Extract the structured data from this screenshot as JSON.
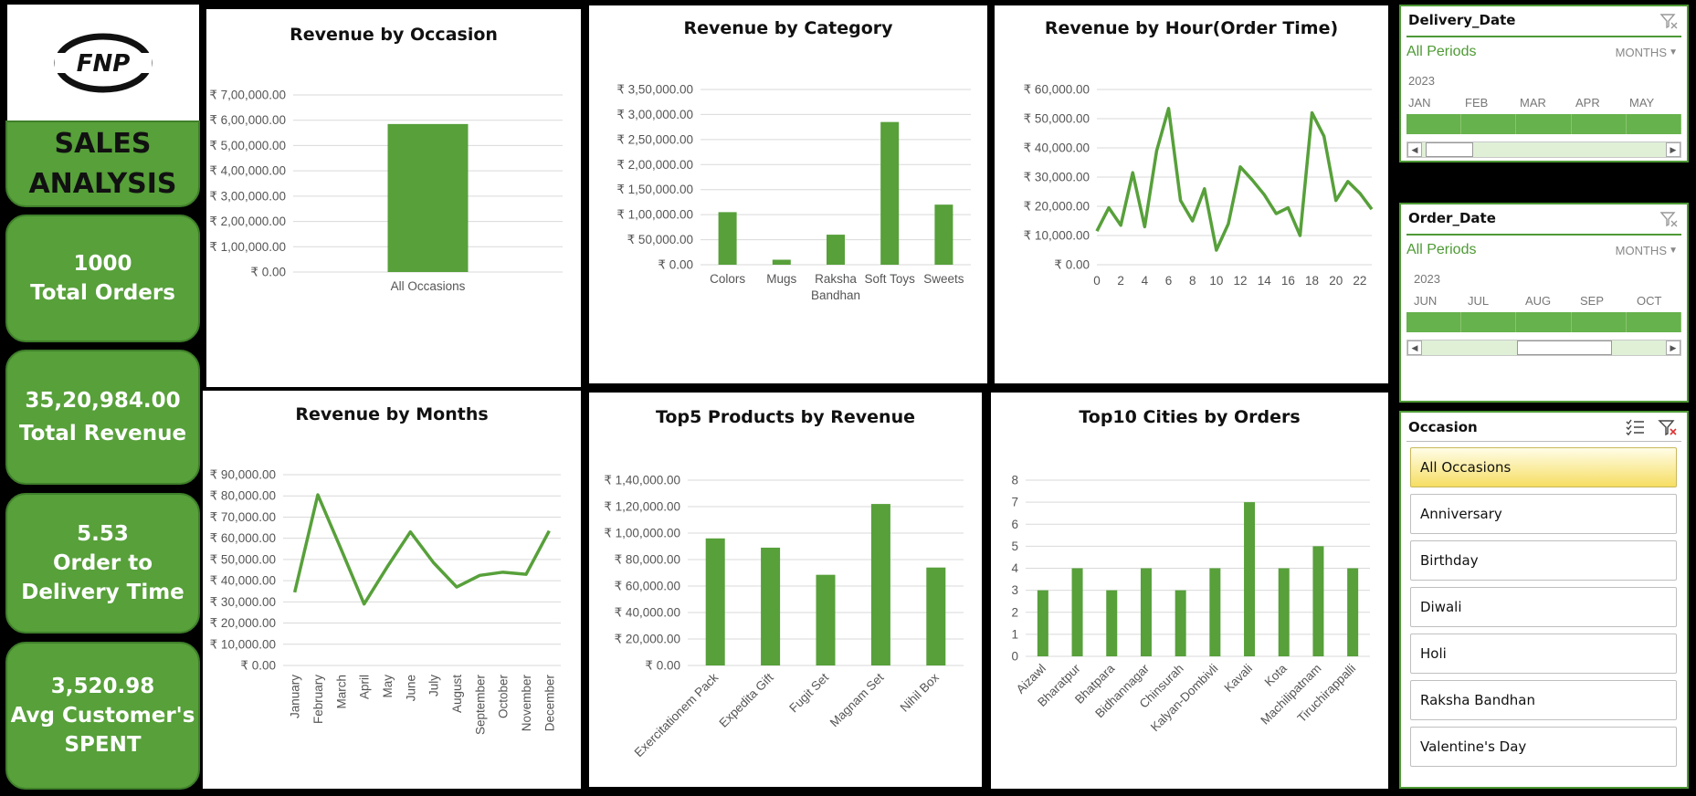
{
  "brand": {
    "logo_text": "FNP"
  },
  "kpis": {
    "title": [
      "SALES",
      "ANALYSIS"
    ],
    "orders": {
      "value": "1000",
      "label": "Total Orders"
    },
    "revenue": {
      "value": "35,20,984.00",
      "label": "Total Revenue"
    },
    "delivery": {
      "value": "5.53",
      "label1": "Order to",
      "label2": "Delivery Time"
    },
    "avg": {
      "value": "3,520.98",
      "label1": "Avg Customer's",
      "label2": "SPENT"
    }
  },
  "colors": {
    "accent": "#57a03a",
    "bar": "#57a03a",
    "line": "#57a03a"
  },
  "chart_data": [
    {
      "id": "occasion",
      "type": "bar",
      "title": "Revenue by Occasion",
      "categories": [
        "All Occasions"
      ],
      "values": [
        585000
      ],
      "ylim": [
        0,
        700000
      ],
      "yticks": [
        "₹ 0.00",
        "₹ 1,00,000.00",
        "₹ 2,00,000.00",
        "₹ 3,00,000.00",
        "₹ 4,00,000.00",
        "₹ 5,00,000.00",
        "₹ 6,00,000.00",
        "₹ 7,00,000.00"
      ]
    },
    {
      "id": "category",
      "type": "bar",
      "title": "Revenue by Category",
      "categories": [
        "Colors",
        "Mugs",
        "Raksha\nBandhan",
        "Soft Toys",
        "Sweets"
      ],
      "values": [
        105000,
        10000,
        60000,
        285000,
        120000
      ],
      "ylim": [
        0,
        350000
      ],
      "yticks": [
        "₹ 0.00",
        "₹ 50,000.00",
        "₹ 1,00,000.00",
        "₹ 1,50,000.00",
        "₹ 2,00,000.00",
        "₹ 2,50,000.00",
        "₹ 3,00,000.00",
        "₹ 3,50,000.00"
      ]
    },
    {
      "id": "hour",
      "type": "line",
      "title": "Revenue by Hour(Order Time)",
      "x": [
        0,
        1,
        2,
        3,
        4,
        5,
        6,
        7,
        8,
        9,
        10,
        11,
        12,
        13,
        14,
        15,
        16,
        17,
        18,
        19,
        20,
        21,
        22,
        23
      ],
      "values": [
        11500,
        19500,
        13500,
        31500,
        13000,
        39000,
        53500,
        22000,
        15000,
        26000,
        5000,
        14000,
        33500,
        29000,
        24000,
        17500,
        19500,
        10000,
        52000,
        44000,
        22000,
        28500,
        24500,
        19000
      ],
      "ylim": [
        0,
        60000
      ],
      "yticks": [
        "₹ 0.00",
        "₹ 10,000.00",
        "₹ 20,000.00",
        "₹ 30,000.00",
        "₹ 40,000.00",
        "₹ 50,000.00",
        "₹ 60,000.00"
      ],
      "xticks": [
        "0",
        "2",
        "4",
        "6",
        "8",
        "10",
        "12",
        "14",
        "16",
        "18",
        "20",
        "22"
      ]
    },
    {
      "id": "months",
      "type": "line",
      "title": "Revenue by Months",
      "categories": [
        "January",
        "February",
        "March",
        "April",
        "May",
        "June",
        "July",
        "August",
        "September",
        "October",
        "November",
        "December"
      ],
      "values": [
        34500,
        80500,
        55000,
        29000,
        46500,
        63000,
        48500,
        37000,
        42500,
        44000,
        43000,
        63500
      ],
      "ylim": [
        0,
        90000
      ],
      "yticks": [
        "₹ 0.00",
        "₹ 10,000.00",
        "₹ 20,000.00",
        "₹ 30,000.00",
        "₹ 40,000.00",
        "₹ 50,000.00",
        "₹ 60,000.00",
        "₹ 70,000.00",
        "₹ 80,000.00",
        "₹ 90,000.00"
      ]
    },
    {
      "id": "products",
      "type": "bar",
      "title": "Top5 Products by Revenue",
      "categories": [
        "Exercitationem Pack",
        "Expedita Gift",
        "Fugit Set",
        "Magnam Set",
        "Nihil Box"
      ],
      "values": [
        96000,
        89000,
        68500,
        122000,
        74000
      ],
      "ylim": [
        0,
        140000
      ],
      "yticks": [
        "₹ 0.00",
        "₹ 20,000.00",
        "₹ 40,000.00",
        "₹ 60,000.00",
        "₹ 80,000.00",
        "₹ 1,00,000.00",
        "₹ 1,20,000.00",
        "₹ 1,40,000.00"
      ]
    },
    {
      "id": "cities",
      "type": "bar",
      "title": "Top10 Cities by Orders",
      "categories": [
        "Aizawl",
        "Bharatpur",
        "Bhatpara",
        "Bidhannagar",
        "Chinsurah",
        "Kalyan-Dombivli",
        "Kavali",
        "Kota",
        "Machilipatnam",
        "Tiruchirappalli"
      ],
      "values": [
        3,
        4,
        3,
        4,
        3,
        4,
        7,
        4,
        5,
        4
      ],
      "ylim": [
        0,
        8
      ],
      "yticks": [
        "0",
        "1",
        "2",
        "3",
        "4",
        "5",
        "6",
        "7",
        "8"
      ]
    }
  ],
  "slicers": {
    "delivery": {
      "title": "Delivery_Date",
      "period": "All Periods",
      "level": "MONTHS",
      "year": "2023",
      "months": [
        "JAN",
        "FEB",
        "MAR",
        "APR",
        "MAY"
      ]
    },
    "order": {
      "title": "Order_Date",
      "period": "All Periods",
      "level": "MONTHS",
      "year": "2023",
      "months": [
        "JUN",
        "JUL",
        "AUG",
        "SEP",
        "OCT"
      ]
    },
    "occasion": {
      "title": "Occasion",
      "items": [
        "All Occasions",
        "Anniversary",
        "Birthday",
        "Diwali",
        "Holi",
        "Raksha Bandhan",
        "Valentine's Day"
      ],
      "selected": "All Occasions"
    }
  }
}
